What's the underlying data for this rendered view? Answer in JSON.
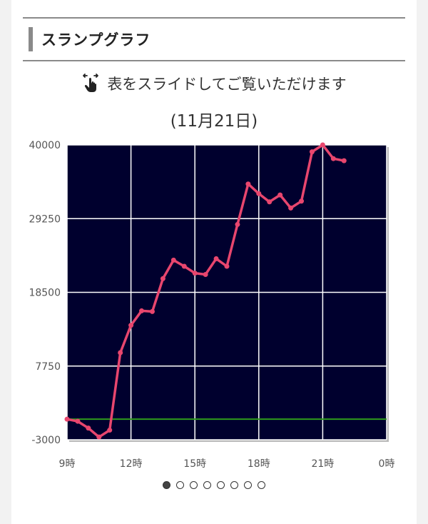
{
  "section": {
    "title": "スランプグラフ"
  },
  "hint": {
    "text": "表をスライドしてご覧いただけます",
    "icon": "swipe-hand-icon"
  },
  "colors": {
    "plot_bg": "#00002e",
    "line": "#e8466e",
    "zero_line": "#2e9a1c",
    "grid": "#ffffff"
  },
  "chart_data": {
    "type": "line",
    "title": "(11月21日)",
    "xlabel": "",
    "ylabel": "",
    "xlim": [
      9,
      24
    ],
    "ylim": [
      -3000,
      40000
    ],
    "x_ticks": [
      9,
      12,
      15,
      18,
      21,
      24
    ],
    "x_tick_labels": [
      "9時",
      "12時",
      "15時",
      "18時",
      "21時",
      "0時"
    ],
    "y_ticks": [
      40000,
      29250,
      18500,
      7750,
      -3000
    ],
    "y_tick_labels": [
      "40000",
      "29250",
      "18500",
      "7750",
      "-3000"
    ],
    "grid": true,
    "reference_line": 0,
    "series": [
      {
        "x": [
          9.0,
          9.5,
          10.0,
          10.5,
          11.0,
          11.5,
          12.0,
          12.5,
          13.0,
          13.5,
          14.0,
          14.5,
          15.0,
          15.5,
          16.0,
          16.5,
          17.0,
          17.5,
          18.0,
          18.5,
          19.0,
          19.5,
          20.0,
          20.5,
          21.0,
          21.5,
          22.0
        ],
        "y": [
          0,
          -300,
          -1300,
          -2600,
          -1600,
          9700,
          13700,
          15800,
          15700,
          20500,
          23200,
          22300,
          21300,
          21100,
          23400,
          22300,
          28400,
          34300,
          32900,
          31700,
          32700,
          30800,
          31800,
          39000,
          40000,
          38000,
          37700
        ]
      }
    ]
  },
  "pager": {
    "count": 8,
    "active": 0
  }
}
